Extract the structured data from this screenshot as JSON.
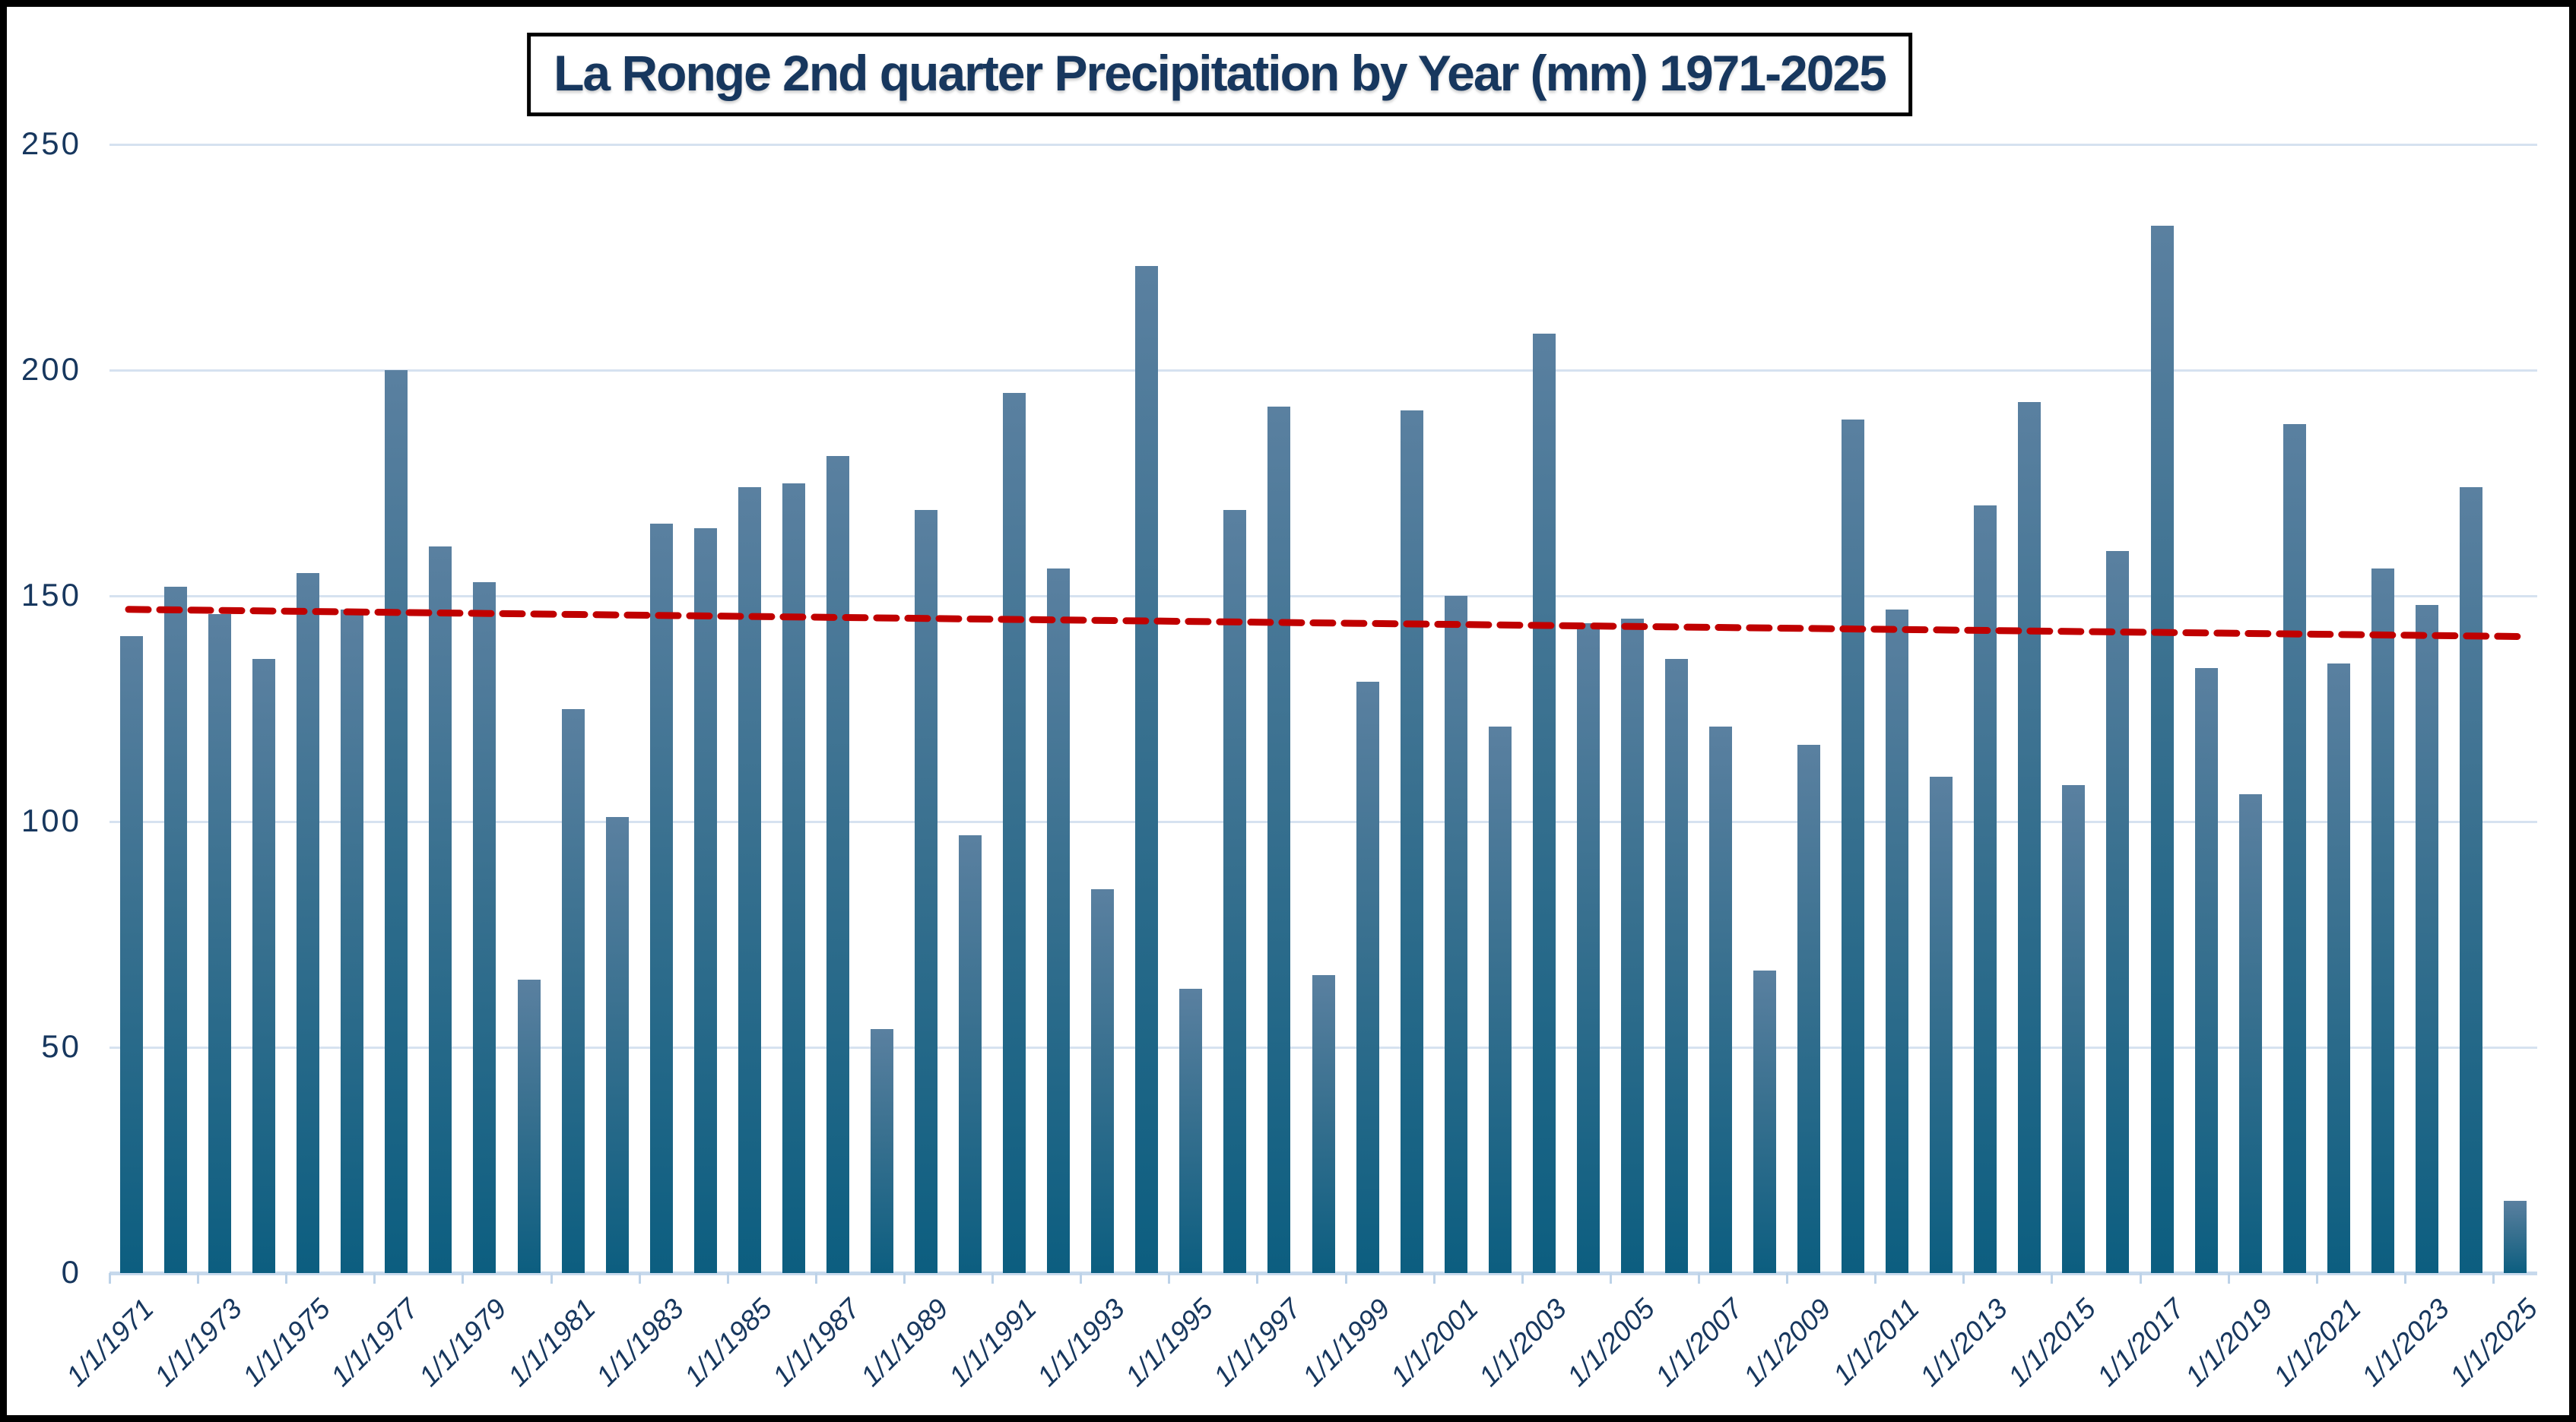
{
  "chart_data": {
    "type": "bar",
    "title": "La Ronge 2nd quarter Precipitation by Year (mm) 1971-2025",
    "xlabel": "",
    "ylabel": "",
    "ylim": [
      0,
      250
    ],
    "yticks": [
      0,
      50,
      100,
      150,
      200,
      250
    ],
    "grid": true,
    "legend": "none",
    "categories": [
      1971,
      1972,
      1973,
      1974,
      1975,
      1976,
      1977,
      1978,
      1979,
      1980,
      1981,
      1982,
      1983,
      1984,
      1985,
      1986,
      1987,
      1988,
      1989,
      1990,
      1991,
      1992,
      1993,
      1994,
      1995,
      1996,
      1997,
      1998,
      1999,
      2000,
      2001,
      2002,
      2003,
      2004,
      2005,
      2006,
      2007,
      2008,
      2009,
      2010,
      2011,
      2012,
      2013,
      2014,
      2015,
      2016,
      2017,
      2018,
      2019,
      2020,
      2021,
      2022,
      2023,
      2024,
      2025
    ],
    "values": [
      141,
      152,
      146,
      136,
      155,
      147,
      200,
      161,
      153,
      65,
      125,
      101,
      166,
      165,
      174,
      175,
      181,
      54,
      169,
      97,
      195,
      156,
      85,
      223,
      63,
      169,
      192,
      66,
      131,
      191,
      150,
      121,
      208,
      144,
      145,
      136,
      121,
      67,
      117,
      189,
      147,
      110,
      170,
      193,
      108,
      160,
      232,
      134,
      106,
      188,
      135,
      156,
      148,
      174,
      16
    ],
    "x_tick_labels": [
      "1/1/1971",
      "1/1/1973",
      "1/1/1975",
      "1/1/1977",
      "1/1/1979",
      "1/1/1981",
      "1/1/1983",
      "1/1/1985",
      "1/1/1987",
      "1/1/1989",
      "1/1/1991",
      "1/1/1993",
      "1/1/1995",
      "1/1/1997",
      "1/1/1999",
      "1/1/2001",
      "1/1/2003",
      "1/1/2005",
      "1/1/2007",
      "1/1/2009",
      "1/1/2011",
      "1/1/2013",
      "1/1/2015",
      "1/1/2017",
      "1/1/2019",
      "1/1/2021",
      "1/1/2023",
      "1/1/2025"
    ],
    "x_tick_interval_years": 2,
    "trendline": {
      "type": "linear",
      "style": "dashed",
      "color": "#C00000",
      "start_value": 147,
      "end_value": 141
    },
    "colors": {
      "bar_top": "#5A80A0",
      "bar_mid": "#38708F",
      "bar_bottom": "#0C5E80",
      "gridline": "#D6E2F0",
      "axis_line": "#C7D9EC",
      "tick": "#BCD2E8",
      "label": "#17375E",
      "title": "#17375E",
      "trend": "#C00000",
      "background": "#FFFFFF",
      "frame_border": "#000000"
    }
  }
}
